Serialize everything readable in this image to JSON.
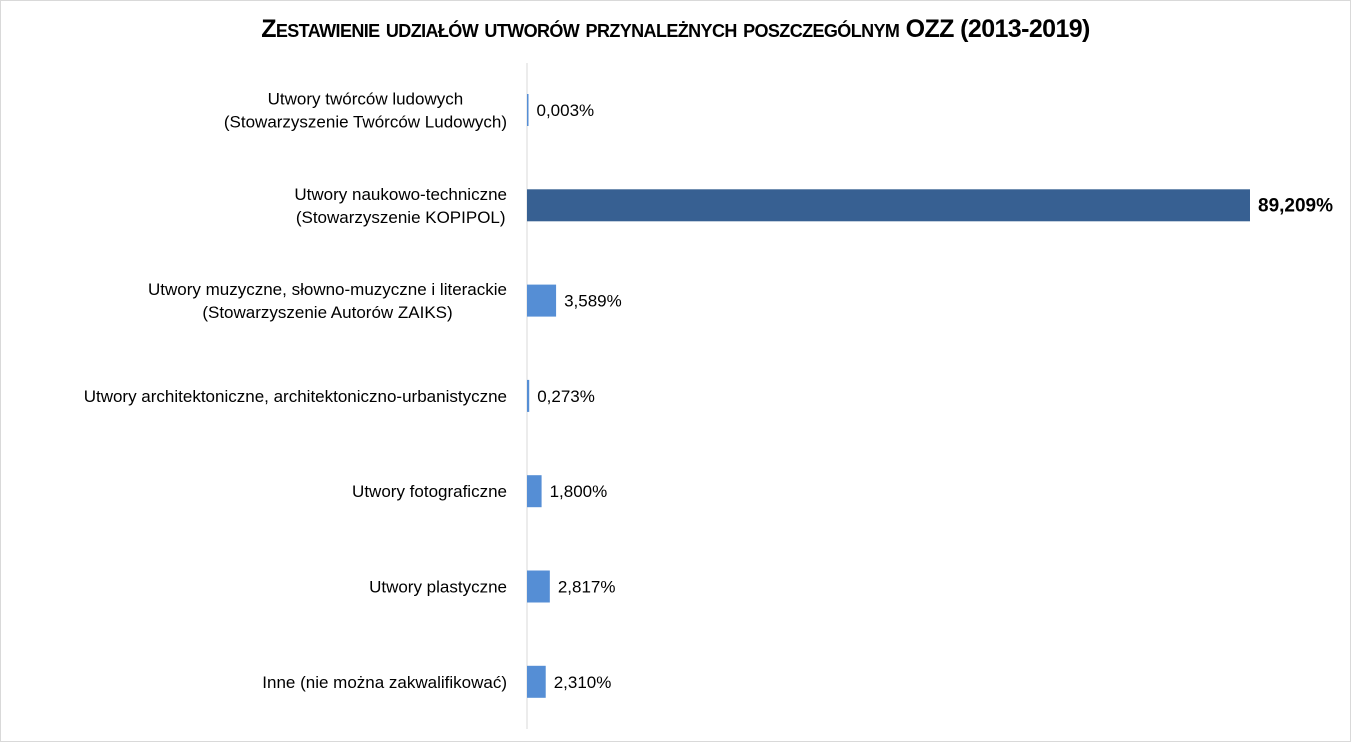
{
  "chart_data": {
    "type": "bar",
    "orientation": "horizontal",
    "title": "Zestawienie udziałów utworów przynależnych poszczególnym OZZ (2013-2019)",
    "categories": [
      [
        "Utwory twórców ludowych",
        "(Stowarzyszenie Twórców Ludowych)"
      ],
      [
        "Utwory naukowo-techniczne",
        "(Stowarzyszenie KOPIPOL)"
      ],
      [
        "Utwory muzyczne, słowno-muzyczne i literackie",
        "(Stowarzyszenie Autorów ZAIKS)"
      ],
      [
        "Utwory architektoniczne, architektoniczno-urbanistyczne"
      ],
      [
        "Utwory fotograficzne"
      ],
      [
        "Utwory plastyczne"
      ],
      [
        "Inne (nie można zakwalifikować)"
      ]
    ],
    "values": [
      0.003,
      89.209,
      3.589,
      0.273,
      1.8,
      2.817,
      2.31
    ],
    "value_labels": [
      "0,003%",
      "89,209%",
      "3,589%",
      "0,273%",
      "1,800%",
      "2,817%",
      "2,310%"
    ],
    "highlight_index": 1,
    "xlim": [
      0,
      89.209
    ],
    "grid": false,
    "legend": "none",
    "colors": {
      "bar": "#558ED5",
      "highlight": "#376092",
      "axis": "#d9d9d9"
    }
  }
}
